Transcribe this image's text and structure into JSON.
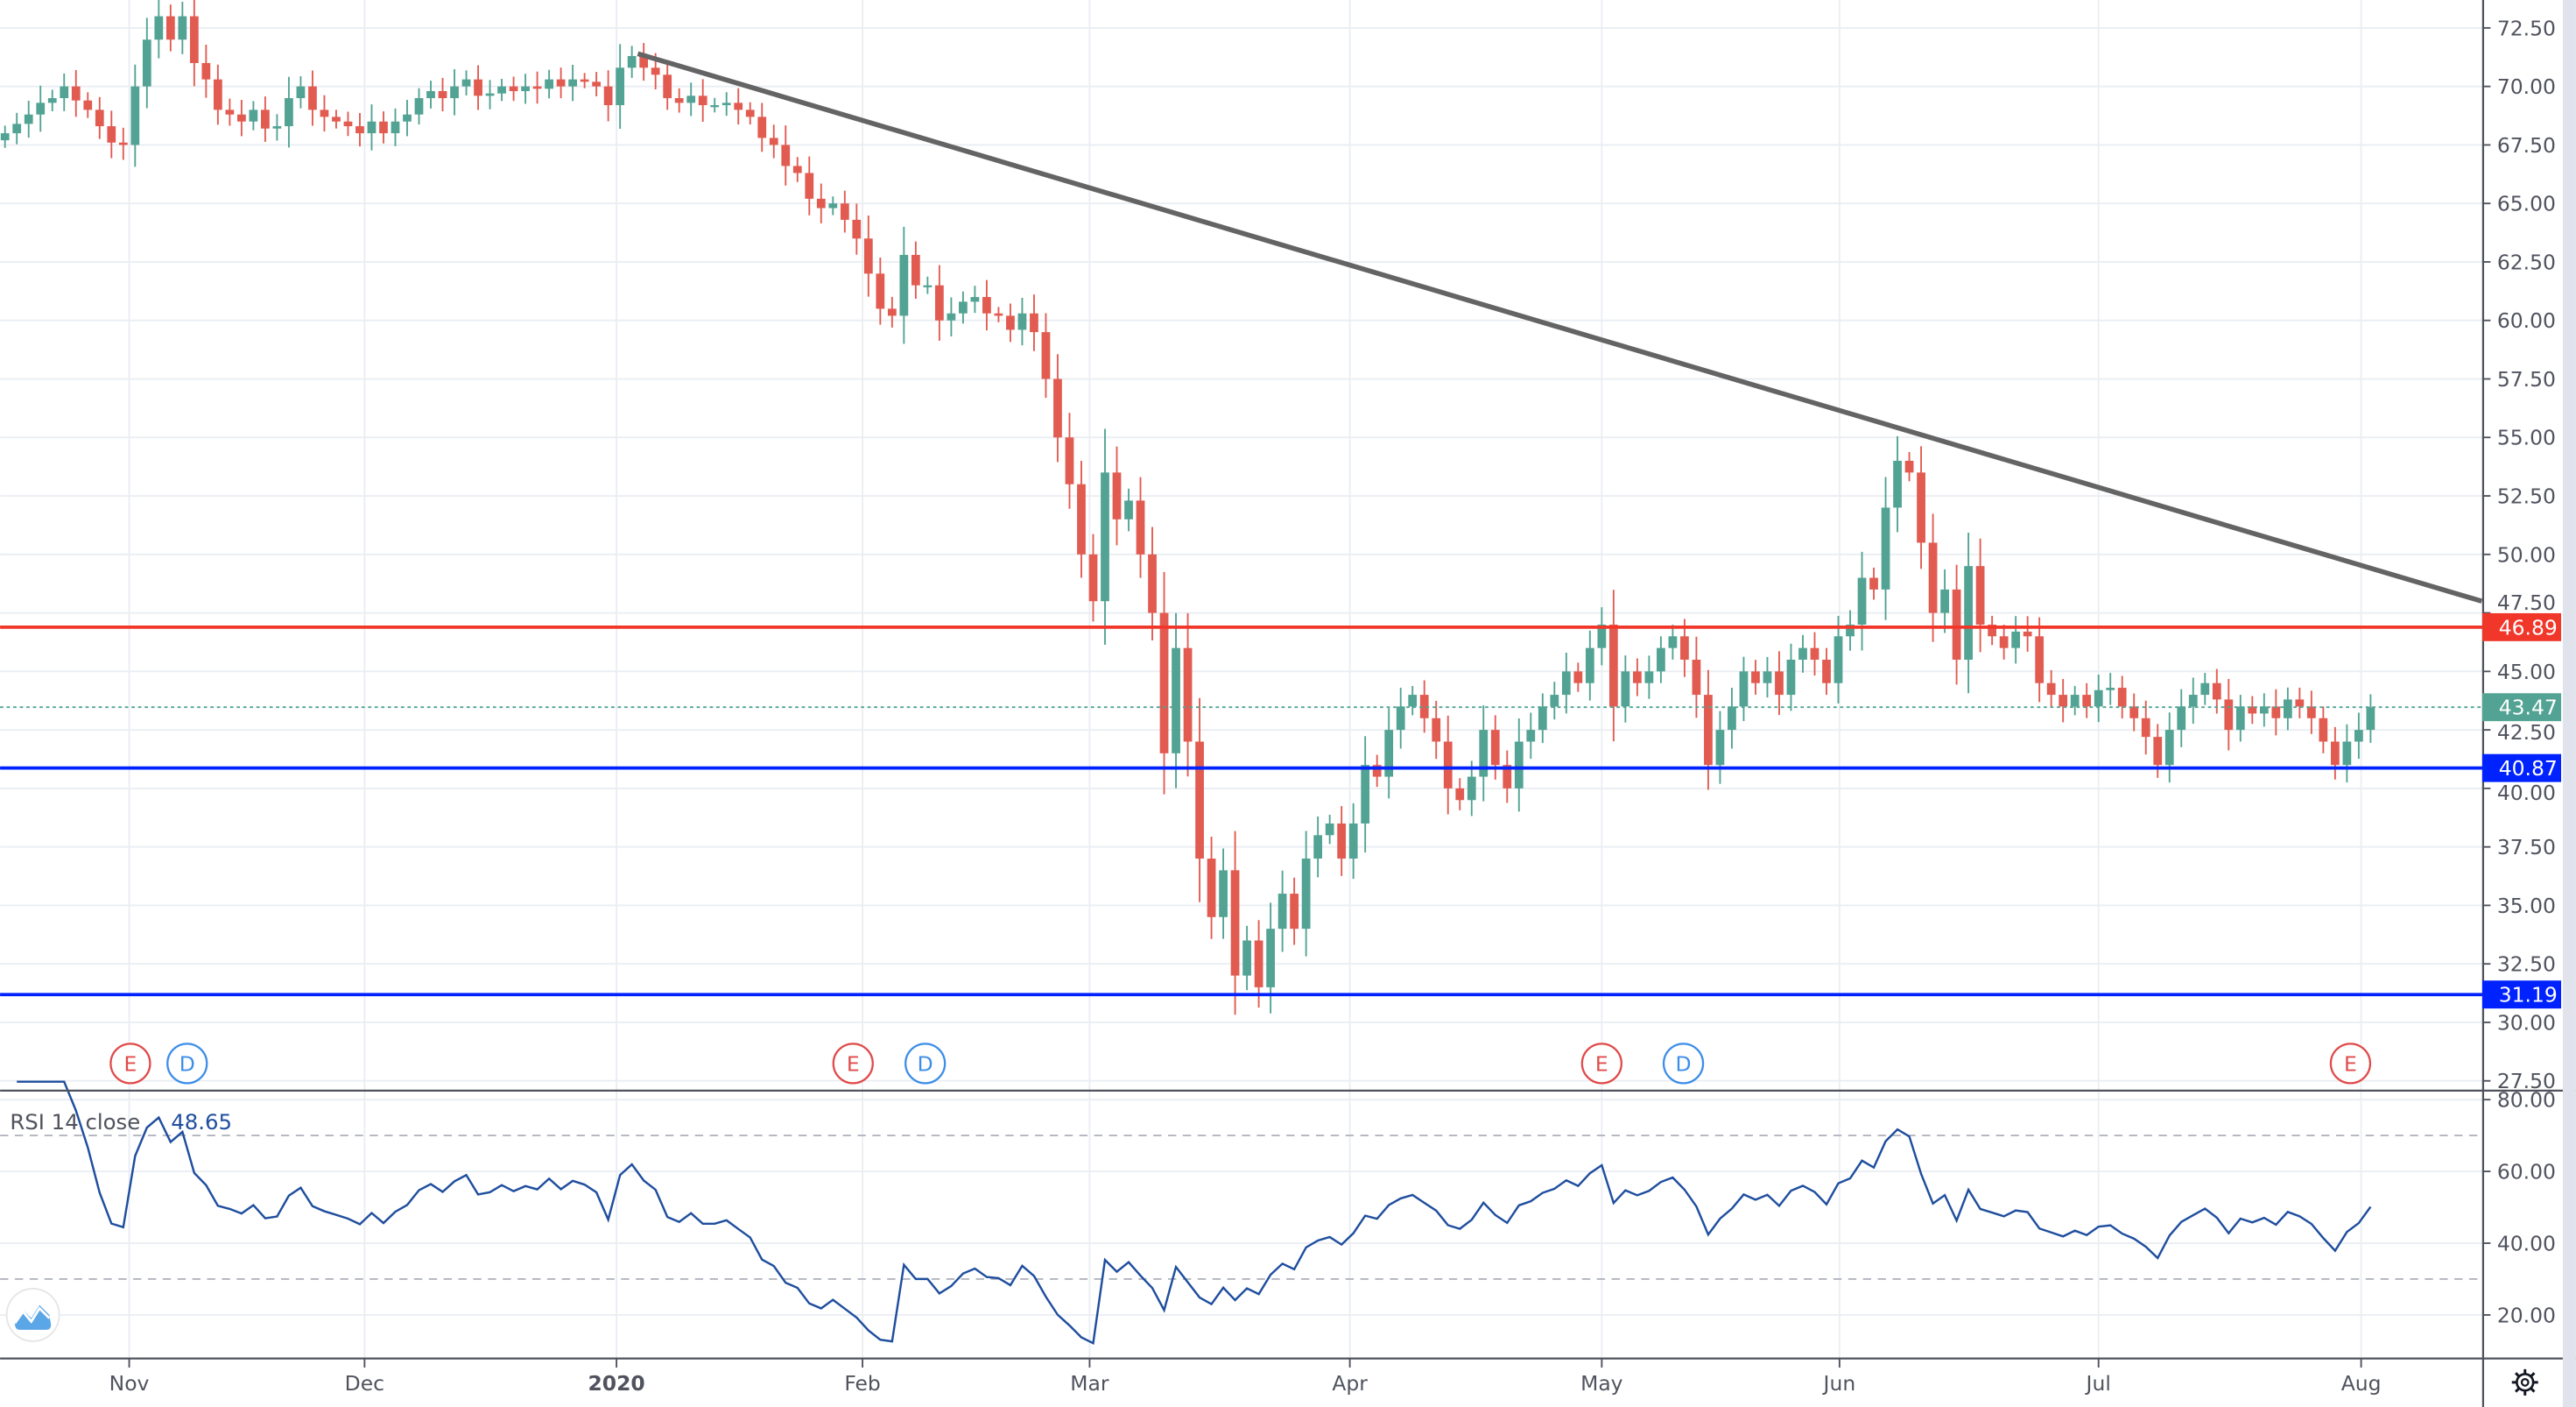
{
  "chart_data": {
    "type": "candlestick",
    "price_axis": {
      "ticks": [
        "72.50",
        "70.00",
        "67.50",
        "65.00",
        "62.50",
        "60.00",
        "57.50",
        "55.00",
        "52.50",
        "50.00",
        "47.50",
        "45.00",
        "42.50",
        "40.00",
        "37.50",
        "35.00",
        "32.50",
        "30.00",
        "27.50"
      ],
      "ylim": [
        27.5,
        72.5
      ]
    },
    "x_ticks": [
      {
        "label": "Nov",
        "bar": 10.5,
        "bold": false
      },
      {
        "label": "Dec",
        "bar": 30.4,
        "bold": false
      },
      {
        "label": "2020",
        "bar": 51.7,
        "bold": true
      },
      {
        "label": "Feb",
        "bar": 72.5,
        "bold": false
      },
      {
        "label": "Mar",
        "bar": 91.7,
        "bold": false
      },
      {
        "label": "Apr",
        "bar": 113.7,
        "bold": false
      },
      {
        "label": "May",
        "bar": 135,
        "bold": false
      },
      {
        "label": "Jun",
        "bar": 155.1,
        "bold": false
      },
      {
        "label": "Jul",
        "bar": 177,
        "bold": false
      },
      {
        "label": "Aug",
        "bar": 199.2,
        "bold": false
      }
    ],
    "closes": [
      68.0,
      68.4,
      68.8,
      69.3,
      69.5,
      70.0,
      69.4,
      69.0,
      68.3,
      67.6,
      67.5,
      70.0,
      72.0,
      73.0,
      72.0,
      73.0,
      71.0,
      70.3,
      69.0,
      68.8,
      68.5,
      69.0,
      68.2,
      68.3,
      69.5,
      70.0,
      69.0,
      68.7,
      68.5,
      68.3,
      68.0,
      68.5,
      68.0,
      68.5,
      68.8,
      69.5,
      69.8,
      69.5,
      70.0,
      70.3,
      69.6,
      69.7,
      70.0,
      69.8,
      70.0,
      69.9,
      70.3,
      70.0,
      70.3,
      70.2,
      70.0,
      69.2,
      70.8,
      71.3,
      70.8,
      70.5,
      69.5,
      69.3,
      69.6,
      69.2,
      69.2,
      69.3,
      69.0,
      68.7,
      67.8,
      67.5,
      66.6,
      66.3,
      65.2,
      64.8,
      65.0,
      64.3,
      63.5,
      62.0,
      60.5,
      60.2,
      62.8,
      61.5,
      61.5,
      60.0,
      60.3,
      60.8,
      61.0,
      60.3,
      60.2,
      59.6,
      60.3,
      59.5,
      57.5,
      55.0,
      53.0,
      50.0,
      48.0,
      53.5,
      51.5,
      52.3,
      50.0,
      47.5,
      41.5,
      46.0,
      42.0,
      37.0,
      34.5,
      36.5,
      32.0,
      33.5,
      31.5,
      34.0,
      35.5,
      34.0,
      37.0,
      38.0,
      38.5,
      37.0,
      38.5,
      41.0,
      40.5,
      42.5,
      43.5,
      44.0,
      43.0,
      42.0,
      40.0,
      39.5,
      40.5,
      42.5,
      41.0,
      40.0,
      42.0,
      42.5,
      43.5,
      44.0,
      45.0,
      44.5,
      46.0,
      47.0,
      43.5,
      45.0,
      44.5,
      45.0,
      46.0,
      46.5,
      45.5,
      44.0,
      41.0,
      42.5,
      43.5,
      45.0,
      44.5,
      45.0,
      44.0,
      45.5,
      46.0,
      45.5,
      44.5,
      46.5,
      47.0,
      49.0,
      48.5,
      52.0,
      54.0,
      53.5,
      50.5,
      47.5,
      48.5,
      45.5,
      49.5,
      47.0,
      46.5,
      46.0,
      46.7,
      46.5,
      44.5,
      44.0,
      43.5,
      44.0,
      43.5,
      44.2,
      44.3,
      43.5,
      43.0,
      42.2,
      41.0,
      42.5,
      43.5,
      44.0,
      44.5,
      43.8,
      42.5,
      43.5,
      43.2,
      43.5,
      43.0,
      43.8,
      43.5,
      43.0,
      42.0,
      41.0,
      42.0,
      42.5,
      43.47
    ],
    "trendline": {
      "from": {
        "bar": 53.5,
        "price": 71.4
      },
      "to": {
        "bar": 209.4,
        "price": 48.0
      },
      "color": "#646464"
    },
    "horizontal_lines": [
      {
        "price": 46.89,
        "label": "46.89",
        "color": "#f0372a"
      },
      {
        "price": 40.87,
        "label": "40.87",
        "color": "#0022ff"
      },
      {
        "price": 31.19,
        "label": "31.19",
        "color": "#0022ff"
      }
    ],
    "last_price": {
      "price": 43.47,
      "label": "43.47",
      "color": "#52a393"
    },
    "events": [
      {
        "type": "E",
        "bar": 10.6,
        "color": "#e04b4b"
      },
      {
        "type": "D",
        "bar": 15.4,
        "color": "#3d8ee8"
      },
      {
        "type": "E",
        "bar": 71.7,
        "color": "#e04b4b"
      },
      {
        "type": "D",
        "bar": 77.8,
        "color": "#3d8ee8"
      },
      {
        "type": "E",
        "bar": 135,
        "color": "#e04b4b"
      },
      {
        "type": "D",
        "bar": 141.9,
        "color": "#3d8ee8"
      },
      {
        "type": "E",
        "bar": 198.3,
        "color": "#e04b4b"
      }
    ],
    "up_color": "#52a393",
    "down_color": "#e25b51",
    "rsi": {
      "title": "RSI 14 close",
      "value": "48.65",
      "period": 14,
      "color": "#1f4e9e",
      "ticks": [
        "80.00",
        "60.00",
        "40.00",
        "20.00"
      ],
      "ylim": [
        20,
        80
      ],
      "bands": [
        70,
        30
      ]
    }
  }
}
